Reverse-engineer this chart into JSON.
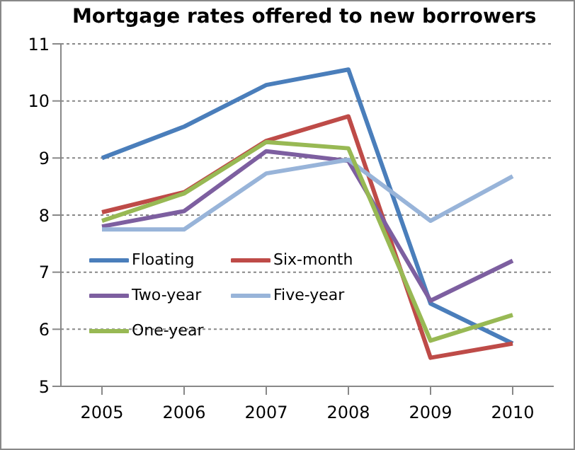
{
  "chart_data": {
    "type": "line",
    "title": "Mortgage rates offered to new borrowers",
    "categories": [
      "2005",
      "2006",
      "2007",
      "2008",
      "2009",
      "2010"
    ],
    "series": [
      {
        "name": "Floating",
        "color": "#4a7ebb",
        "values": [
          9.0,
          9.55,
          10.28,
          10.55,
          6.45,
          5.75
        ]
      },
      {
        "name": "Six-month",
        "color": "#be4b48",
        "values": [
          8.05,
          8.4,
          9.3,
          9.73,
          5.5,
          5.75
        ]
      },
      {
        "name": "Two-year",
        "color": "#7d5fa0",
        "values": [
          7.8,
          8.07,
          9.12,
          8.95,
          6.5,
          7.2
        ]
      },
      {
        "name": "Five-year",
        "color": "#98b4d9",
        "values": [
          7.75,
          7.75,
          8.73,
          8.97,
          7.9,
          8.68
        ]
      },
      {
        "name": "One-year",
        "color": "#98b954",
        "values": [
          7.9,
          8.38,
          9.28,
          9.17,
          5.8,
          6.25
        ]
      }
    ],
    "ylim": [
      5,
      11
    ],
    "yticks": [
      5,
      6,
      7,
      8,
      9,
      10,
      11
    ],
    "grid": "y",
    "legend": "bottom left",
    "marker": "none",
    "line_style": "solid"
  }
}
